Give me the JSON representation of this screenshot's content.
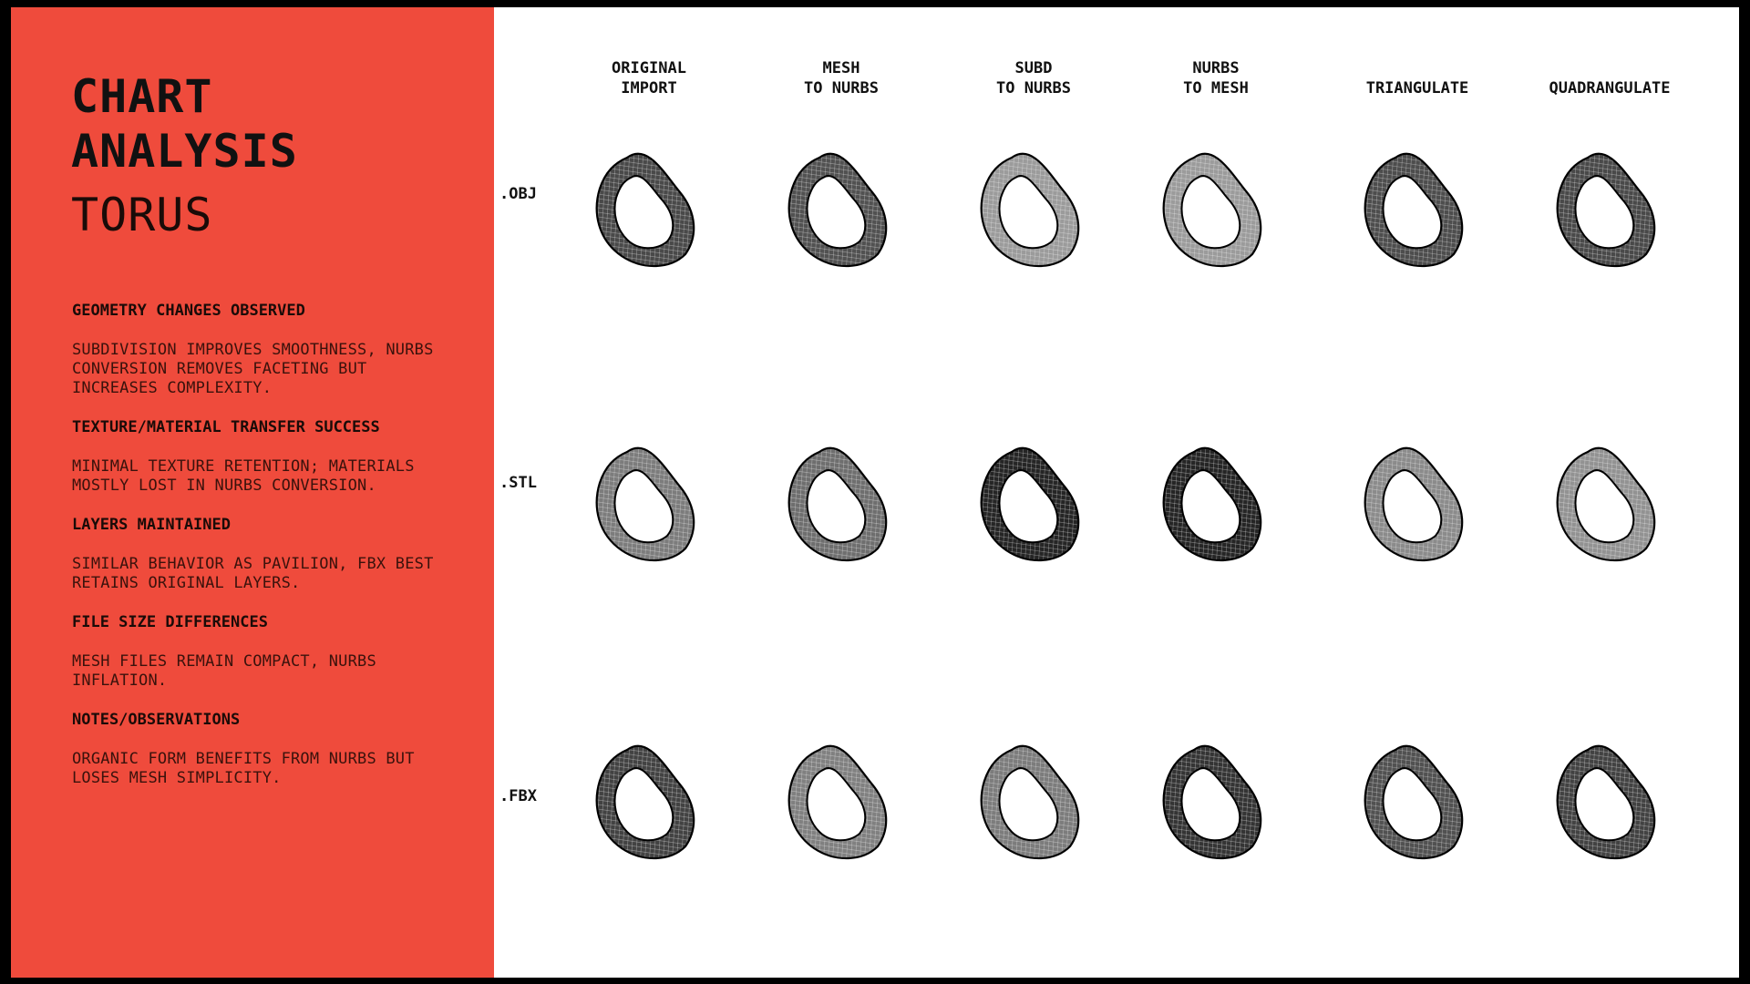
{
  "title": {
    "line1": "CHART",
    "line2": "ANALYSIS"
  },
  "subtitle": "TORUS",
  "sections": [
    {
      "heading": "GEOMETRY CHANGES OBSERVED",
      "body": "SUBDIVISION IMPROVES SMOOTHNESS, NURBS CONVERSION REMOVES FACETING BUT INCREASES COMPLEXITY."
    },
    {
      "heading": "TEXTURE/MATERIAL TRANSFER SUCCESS",
      "body": "MINIMAL TEXTURE RETENTION; MATERIALS MOSTLY LOST IN NURBS CONVERSION."
    },
    {
      "heading": "LAYERS MAINTAINED",
      "body": "SIMILAR BEHAVIOR AS PAVILION, FBX BEST RETAINS ORIGINAL LAYERS."
    },
    {
      "heading": "FILE SIZE DIFFERENCES",
      "body": "MESH FILES REMAIN COMPACT, NURBS INFLATION."
    },
    {
      "heading": "NOTES/OBSERVATIONS",
      "body": "ORGANIC FORM BENEFITS FROM NURBS BUT LOSES MESH SIMPLICITY."
    }
  ],
  "columns": [
    {
      "l1": "ORIGINAL",
      "l2": "IMPORT"
    },
    {
      "l1": "MESH",
      "l2": "TO NURBS"
    },
    {
      "l1": "SUBD",
      "l2": "TO NURBS"
    },
    {
      "l1": "NURBS",
      "l2": "TO MESH"
    },
    {
      "l1": "",
      "l2": "TRIANGULATE"
    },
    {
      "l1": "",
      "l2": "QUADRANGULATE"
    }
  ],
  "rows": [
    {
      "label": ".OBJ",
      "shades": [
        "#2a2a2a",
        "#333333",
        "#8a8a8a",
        "#8a8a8a",
        "#2f2f2f",
        "#2a2a2a"
      ]
    },
    {
      "label": ".STL",
      "shades": [
        "#666666",
        "#555555",
        "#000000",
        "#000000",
        "#777777",
        "#808080"
      ]
    },
    {
      "label": ".FBX",
      "shades": [
        "#222222",
        "#6a6a6a",
        "#666666",
        "#111111",
        "#333333",
        "#222222"
      ]
    }
  ]
}
